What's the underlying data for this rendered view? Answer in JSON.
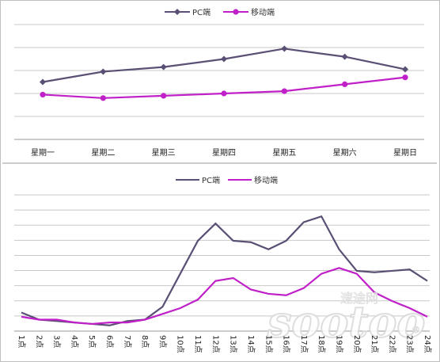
{
  "colors": {
    "pc": "#5a4f74",
    "mobile": "#c020c8",
    "grid": "#c8c8c8",
    "watermark": "#d9d9d9"
  },
  "watermark": {
    "small": "速途网",
    "big": "sootoo",
    "registered": "®"
  },
  "chart_data": [
    {
      "type": "line",
      "title": "",
      "xlabel": "",
      "ylabel": "",
      "categories": [
        "星期一",
        "星期二",
        "星期三",
        "星期四",
        "星期五",
        "星期六",
        "星期日"
      ],
      "series": [
        {
          "name": "PC端",
          "values": [
            50,
            59,
            63,
            70,
            79,
            72,
            61
          ],
          "marker": "diamond"
        },
        {
          "name": "移动端",
          "values": [
            39,
            36,
            38,
            40,
            42,
            48,
            54
          ],
          "marker": "circle"
        }
      ],
      "ylim": [
        0,
        100
      ],
      "grid": true,
      "legend": "top-center"
    },
    {
      "type": "line",
      "title": "",
      "xlabel": "",
      "ylabel": "",
      "categories": [
        "1点",
        "2点",
        "3点",
        "4点",
        "5点",
        "6点",
        "7点",
        "8点",
        "9点",
        "10点",
        "11点",
        "12点",
        "13点",
        "14点",
        "15点",
        "16点",
        "17点",
        "18点",
        "19点",
        "20点",
        "21点",
        "22点",
        "23点",
        "24点"
      ],
      "series": [
        {
          "name": "PC端",
          "values": [
            8,
            3,
            2,
            1,
            0,
            -1,
            2,
            3,
            12,
            35,
            58,
            70,
            58,
            57,
            52,
            58,
            71,
            75,
            52,
            37,
            36,
            37,
            38,
            30
          ]
        },
        {
          "name": "移动端",
          "values": [
            5,
            3,
            3,
            1,
            0,
            1,
            1,
            3,
            7,
            11,
            17,
            30,
            32,
            24,
            21,
            20,
            25,
            35,
            39,
            35,
            22,
            16,
            11,
            5
          ]
        }
      ],
      "ylim": [
        -5,
        90
      ],
      "grid": true,
      "legend": "top-center"
    }
  ]
}
